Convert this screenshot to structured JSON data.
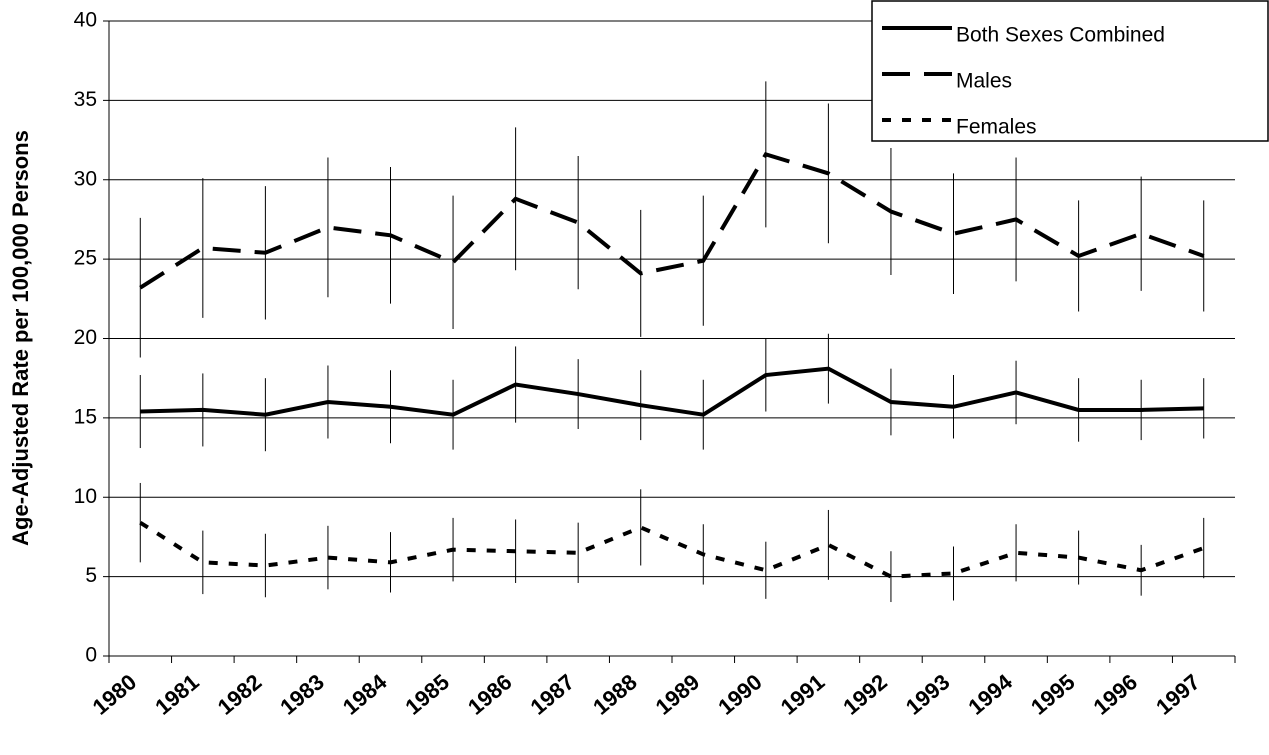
{
  "chart_data": {
    "type": "line",
    "y_label": "Age-Adjusted Rate per 100,000 Persons",
    "categories": [
      "1980",
      "1981",
      "1982",
      "1983",
      "1984",
      "1985",
      "1986",
      "1987",
      "1988",
      "1989",
      "1990",
      "1991",
      "1992",
      "1993",
      "1994",
      "1995",
      "1996",
      "1997"
    ],
    "series": [
      {
        "name": "Both Sexes Combined",
        "color": "#000000",
        "dash": "solid",
        "values": [
          15.4,
          15.5,
          15.2,
          16.0,
          15.7,
          15.2,
          17.1,
          16.5,
          15.8,
          15.2,
          17.7,
          18.1,
          16.0,
          15.7,
          16.6,
          15.5,
          15.5,
          15.6
        ],
        "errors": [
          2.3,
          2.3,
          2.3,
          2.3,
          2.3,
          2.2,
          2.4,
          2.2,
          2.2,
          2.2,
          2.3,
          2.2,
          2.1,
          2.0,
          2.0,
          2.0,
          1.9,
          1.9
        ]
      },
      {
        "name": "Males",
        "color": "#000000",
        "dash": "dashed",
        "values": [
          23.2,
          25.7,
          25.4,
          27.0,
          26.5,
          24.8,
          28.8,
          27.3,
          24.1,
          24.9,
          31.6,
          30.4,
          28.0,
          26.6,
          27.5,
          25.2,
          26.6,
          25.2
        ],
        "errors": [
          4.4,
          4.4,
          4.2,
          4.4,
          4.3,
          4.2,
          4.5,
          4.2,
          4.0,
          4.1,
          4.6,
          4.4,
          4.0,
          3.8,
          3.9,
          3.5,
          3.6,
          3.5
        ]
      },
      {
        "name": "Females",
        "color": "#000000",
        "dash": "dotted",
        "values": [
          8.4,
          5.9,
          5.7,
          6.2,
          5.9,
          6.7,
          6.6,
          6.5,
          8.1,
          6.4,
          5.4,
          7.0,
          5.0,
          5.2,
          6.5,
          6.2,
          5.4,
          6.8
        ],
        "errors": [
          2.5,
          2.0,
          2.0,
          2.0,
          1.9,
          2.0,
          2.0,
          1.9,
          2.4,
          1.9,
          1.8,
          2.2,
          1.6,
          1.7,
          1.8,
          1.7,
          1.6,
          1.9
        ]
      }
    ],
    "ylim": [
      0,
      40
    ],
    "yticks": [
      0,
      5,
      10,
      15,
      20,
      25,
      30,
      35,
      40
    ],
    "grid": true,
    "legend": "upper right"
  }
}
